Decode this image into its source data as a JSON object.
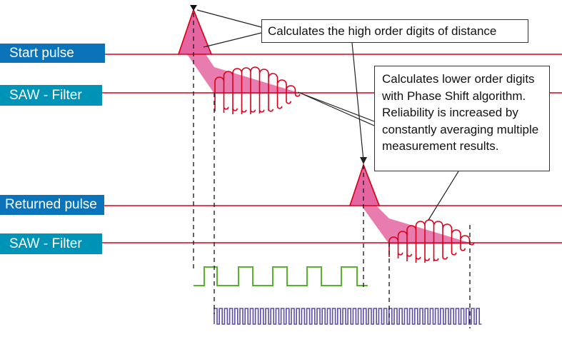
{
  "labels": {
    "start_pulse": "Start pulse",
    "saw_filter_top": "SAW - Filter",
    "returned_pulse": "Returned pulse",
    "saw_filter_bottom": "SAW - Filter"
  },
  "callouts": {
    "high_order": "Calculates the high order digits of distance",
    "low_order_lines": [
      "Calculates lower order digits",
      "with Phase Shift algorithm.",
      "Reliability is increased by",
      "constantly averaging multiple",
      "measurement results."
    ]
  },
  "colors": {
    "label_blue": "#0a73b9",
    "label_teal": "#0093b8",
    "signal_red": "#d9001b",
    "envelope_pink": "#e565a0",
    "gate_green": "#5bb030",
    "clock_purple": "#5c4ea8",
    "guide_dash": "#222222"
  }
}
